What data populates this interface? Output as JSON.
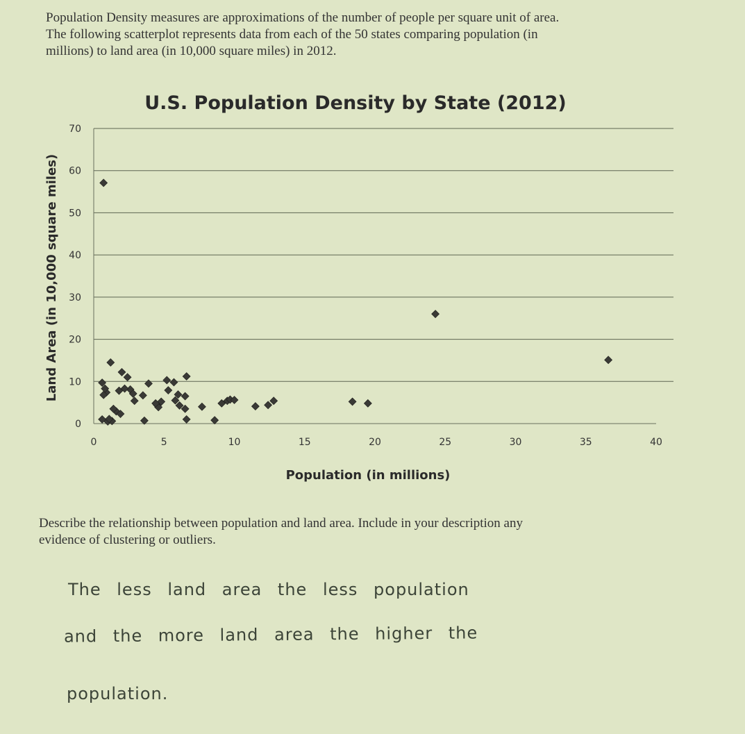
{
  "intro": {
    "line1": "Population Density measures are approximations of the number of people per square unit of area.",
    "line2": "The following scatterplot represents data from each of the 50 states comparing population (in",
    "line3": "millions) to land area (in 10,000 square miles) in 2012."
  },
  "chart_data": {
    "type": "scatter",
    "title": "U.S. Population Density by State (2012)",
    "xlabel": "Population (in millions)",
    "ylabel": "Land Area (in 10,000 square miles)",
    "xlim": [
      0,
      40
    ],
    "ylim": [
      0,
      70
    ],
    "xticks": [
      0,
      5,
      10,
      15,
      20,
      25,
      30,
      35,
      40
    ],
    "yticks": [
      0,
      10,
      20,
      30,
      40,
      50,
      60,
      70
    ],
    "grid": "horizontal",
    "marker": "diamond",
    "marker_color": "#3a3a36",
    "points": [
      [
        0.7,
        57.1
      ],
      [
        1.2,
        14.5
      ],
      [
        24.3,
        26.0
      ],
      [
        36.6,
        15.1
      ],
      [
        0.6,
        9.7
      ],
      [
        0.9,
        7.4
      ],
      [
        0.7,
        6.8
      ],
      [
        0.6,
        1.0
      ],
      [
        1.0,
        0.5
      ],
      [
        1.3,
        0.6
      ],
      [
        1.6,
        2.9
      ],
      [
        1.4,
        3.5
      ],
      [
        1.9,
        2.3
      ],
      [
        1.8,
        7.8
      ],
      [
        2.0,
        12.2
      ],
      [
        2.4,
        11.0
      ],
      [
        2.6,
        8.1
      ],
      [
        2.8,
        7.1
      ],
      [
        2.9,
        5.4
      ],
      [
        3.5,
        6.7
      ],
      [
        3.6,
        0.7
      ],
      [
        3.9,
        9.5
      ],
      [
        4.5,
        4.4
      ],
      [
        4.6,
        3.9
      ],
      [
        4.8,
        5.2
      ],
      [
        5.2,
        10.3
      ],
      [
        5.3,
        7.9
      ],
      [
        5.7,
        9.8
      ],
      [
        5.8,
        5.5
      ],
      [
        6.0,
        6.9
      ],
      [
        6.1,
        4.3
      ],
      [
        6.5,
        3.5
      ],
      [
        6.5,
        6.5
      ],
      [
        6.6,
        1.0
      ],
      [
        6.6,
        11.2
      ],
      [
        7.7,
        4.0
      ],
      [
        8.6,
        0.8
      ],
      [
        9.1,
        4.8
      ],
      [
        9.5,
        5.4
      ],
      [
        9.7,
        5.7
      ],
      [
        10.0,
        5.6
      ],
      [
        11.5,
        4.1
      ],
      [
        12.4,
        4.4
      ],
      [
        12.8,
        5.4
      ],
      [
        19.5,
        4.8
      ],
      [
        18.4,
        5.2
      ],
      [
        1.1,
        1.1
      ],
      [
        2.2,
        8.3
      ],
      [
        4.4,
        4.8
      ],
      [
        0.8,
        8.3
      ]
    ]
  },
  "question": {
    "line1": "Describe the relationship between population and land area.  Include in your description any",
    "line2": "evidence of clustering or outliers."
  },
  "answer": {
    "line1": "The less land area the less population",
    "line2": "and the more land area the higher the",
    "line3": "population."
  }
}
